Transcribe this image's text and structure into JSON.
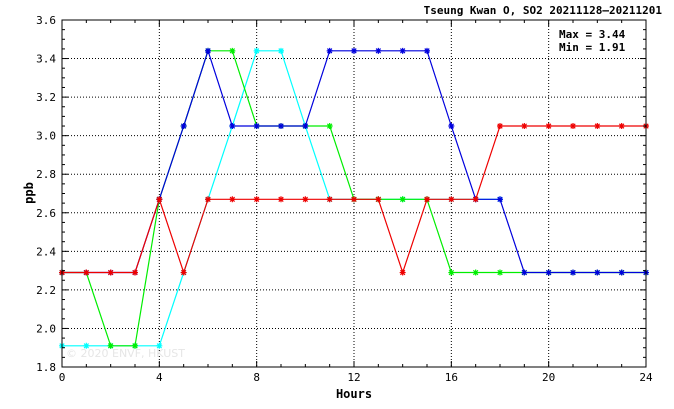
{
  "chart_data": {
    "type": "line",
    "title": "Tseung Kwan O, SO2 20211128–20211201",
    "xlabel": "Hours",
    "ylabel": "ppb",
    "xlim": [
      0,
      24
    ],
    "ylim": [
      1.8,
      3.6
    ],
    "xticks": [
      0,
      4,
      8,
      12,
      16,
      20,
      24
    ],
    "yticks": [
      "1.8",
      "2.0",
      "2.2",
      "2.4",
      "2.6",
      "2.8",
      "3.0",
      "3.2",
      "3.4",
      "3.6"
    ],
    "grid": true,
    "annotations": [
      "Max = 3.44",
      "Min = 1.91"
    ],
    "watermark": "© 2020 ENVF, HKUST",
    "series": [
      {
        "color": "#00ffff",
        "x": [
          0,
          1,
          2,
          3,
          4,
          5,
          6,
          7,
          8,
          9,
          10,
          11,
          12,
          13,
          14,
          15,
          16,
          17,
          18
        ],
        "y": [
          1.91,
          1.91,
          1.91,
          1.91,
          1.91,
          2.29,
          2.67,
          3.05,
          3.44,
          3.44,
          3.05,
          2.67,
          2.67,
          2.67,
          2.67,
          2.67,
          2.67,
          2.67,
          2.67
        ]
      },
      {
        "color": "#00ee00",
        "x": [
          0,
          1,
          2,
          3,
          4,
          5,
          6,
          7,
          8,
          9,
          10,
          11,
          12,
          13,
          14,
          15,
          16,
          17,
          18,
          19,
          20,
          21,
          22,
          23,
          24
        ],
        "y": [
          2.29,
          2.29,
          1.91,
          1.91,
          2.67,
          3.05,
          3.44,
          3.44,
          3.05,
          3.05,
          3.05,
          3.05,
          2.67,
          2.67,
          2.67,
          2.67,
          2.29,
          2.29,
          2.29,
          2.29,
          2.29,
          2.29,
          2.29,
          2.29,
          2.29
        ]
      },
      {
        "color": "#0000dd",
        "x": [
          0,
          1,
          2,
          3,
          4,
          5,
          6,
          7,
          8,
          9,
          10,
          11,
          12,
          13,
          14,
          15,
          16,
          17,
          18,
          19,
          20,
          21,
          22,
          23,
          24
        ],
        "y": [
          2.29,
          2.29,
          2.29,
          2.29,
          2.67,
          3.05,
          3.44,
          3.05,
          3.05,
          3.05,
          3.05,
          3.44,
          3.44,
          3.44,
          3.44,
          3.44,
          3.05,
          2.67,
          2.67,
          2.29,
          2.29,
          2.29,
          2.29,
          2.29,
          2.29
        ]
      },
      {
        "color": "#ee0000",
        "x": [
          0,
          1,
          2,
          3,
          4,
          5,
          6,
          7,
          8,
          9,
          10,
          11,
          12,
          13,
          14,
          15,
          16,
          17,
          18,
          19,
          20,
          21,
          22,
          23,
          24
        ],
        "y": [
          2.29,
          2.29,
          2.29,
          2.29,
          2.67,
          2.29,
          2.67,
          2.67,
          2.67,
          2.67,
          2.67,
          2.67,
          2.67,
          2.67,
          2.29,
          2.67,
          2.67,
          2.67,
          3.05,
          3.05,
          3.05,
          3.05,
          3.05,
          3.05,
          3.05
        ]
      }
    ]
  }
}
